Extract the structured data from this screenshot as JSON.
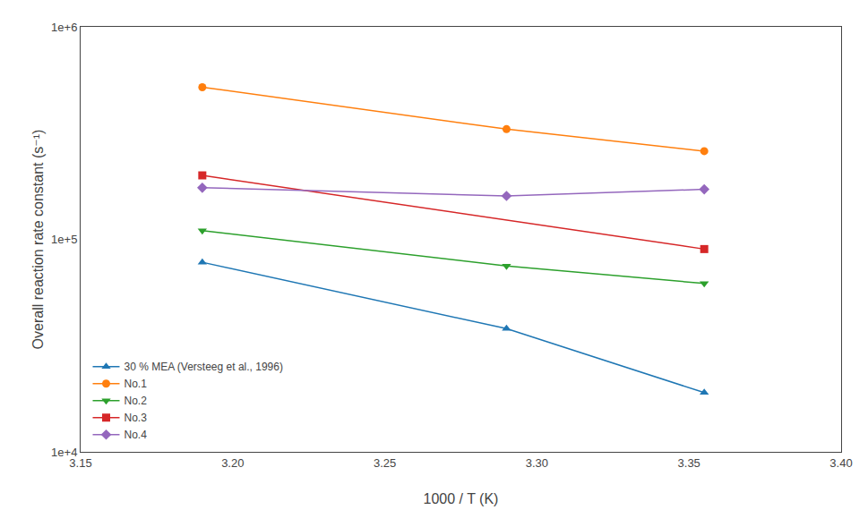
{
  "chart_data": {
    "type": "line",
    "xlabel": "1000 / T (K)",
    "ylabel": "Overall reaction rate constant (s⁻¹)",
    "log": "y",
    "grid": false,
    "legend": "lower left",
    "xlim": [
      3.15,
      3.4
    ],
    "ylim": [
      10000,
      1000000
    ],
    "xticks": [
      3.15,
      {
        "value": 3.2,
        "label": "3.20"
      },
      3.25,
      {
        "value": 3.3,
        "label": "3.30"
      },
      3.35,
      {
        "value": 3.4,
        "label": "3.40"
      }
    ],
    "yticks": [
      {
        "value": 10000,
        "label": "1e+4"
      },
      {
        "value": 100000,
        "label": "1e+5"
      },
      {
        "value": 1000000,
        "label": "1e+6"
      }
    ],
    "series": [
      {
        "name": "30 % MEA (Versteeg et al., 1996)",
        "marker": "triangle-up",
        "x": [
          3.19,
          3.29,
          3.355
        ],
        "values": [
          78000,
          38000,
          19000
        ]
      },
      {
        "name": "No.1",
        "marker": "circle",
        "x": [
          3.19,
          3.29,
          3.355
        ],
        "values": [
          520000,
          330000,
          260000
        ]
      },
      {
        "name": "No.2",
        "marker": "triangle-down",
        "x": [
          3.19,
          3.29,
          3.355
        ],
        "values": [
          110000,
          75000,
          62000
        ]
      },
      {
        "name": "No.3",
        "marker": "square",
        "x": [
          3.19,
          3.355
        ],
        "values": [
          200000,
          90000
        ]
      },
      {
        "name": "No.4",
        "marker": "diamond",
        "x": [
          3.19,
          3.29,
          3.355
        ],
        "values": [
          175000,
          160000,
          172000
        ]
      }
    ]
  }
}
